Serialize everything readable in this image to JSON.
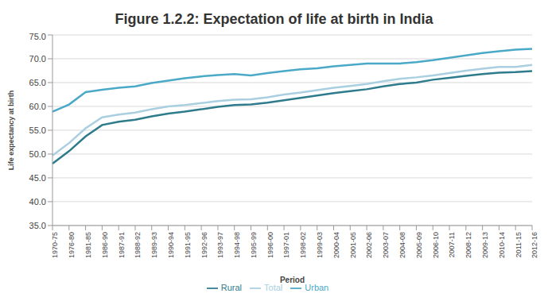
{
  "chart_data": {
    "type": "line",
    "title": "Figure 1.2.2: Expectation of life at birth in India",
    "x_label": "Period",
    "y_label": "Life expectancy at birth",
    "categories": [
      "1970-75",
      "1976-80",
      "1981-85",
      "1986-90",
      "1987-91",
      "1988-92",
      "1989-93",
      "1990-94",
      "1991-95",
      "1992-96",
      "1993-97",
      "1994-98",
      "1995-99",
      "1996-00",
      "1997-01",
      "1998-02",
      "1999-03",
      "2000-04",
      "2001-05",
      "2002-06",
      "2003-07",
      "2004-08",
      "2005-09",
      "2006-10",
      "2007-11",
      "2008-12",
      "2009-13",
      "2010-14",
      "2011-15",
      "2012-16"
    ],
    "series": [
      {
        "name": "Rural",
        "color": "#2e7b8c",
        "values": [
          48.0,
          50.6,
          53.7,
          56.1,
          56.8,
          57.2,
          57.9,
          58.5,
          58.9,
          59.4,
          59.9,
          60.3,
          60.4,
          60.8,
          61.3,
          61.8,
          62.3,
          62.8,
          63.2,
          63.6,
          64.2,
          64.7,
          65.0,
          65.6,
          66.0,
          66.4,
          66.8,
          67.1,
          67.2,
          67.4
        ],
        "marker": "none"
      },
      {
        "name": "Urban",
        "color": "#4ba9c8",
        "values": [
          58.9,
          60.4,
          63.0,
          63.5,
          63.9,
          64.2,
          64.9,
          65.4,
          65.9,
          66.3,
          66.6,
          66.8,
          66.5,
          67.0,
          67.4,
          67.8,
          68.0,
          68.4,
          68.7,
          69.0,
          69.0,
          69.0,
          69.3,
          69.7,
          70.2,
          70.7,
          71.2,
          71.6,
          71.9,
          72.1
        ],
        "marker": "none"
      },
      {
        "name": "Total",
        "color": "#a9cfe0",
        "values": [
          49.7,
          52.3,
          55.4,
          57.7,
          58.3,
          58.7,
          59.4,
          60.0,
          60.3,
          60.7,
          61.1,
          61.4,
          61.5,
          61.9,
          62.5,
          62.9,
          63.4,
          63.9,
          64.3,
          64.7,
          65.3,
          65.8,
          66.1,
          66.5,
          67.0,
          67.5,
          67.9,
          68.3,
          68.3,
          68.7
        ],
        "marker": "none"
      }
    ],
    "ylim": [
      35,
      75
    ],
    "yticks": [
      {
        "value": 35,
        "label": "35.0"
      },
      {
        "value": 40,
        "label": "40.0"
      },
      {
        "value": 45,
        "label": "45.0"
      },
      {
        "value": 50,
        "label": "50.0"
      },
      {
        "value": 55,
        "label": "55.0"
      },
      {
        "value": 60,
        "label": "60.0"
      },
      {
        "value": 65,
        "label": "65.0"
      },
      {
        "value": 70,
        "label": "70.0"
      },
      {
        "value": 75,
        "label": "75.0"
      }
    ],
    "grid": true,
    "legend": "bottom"
  }
}
